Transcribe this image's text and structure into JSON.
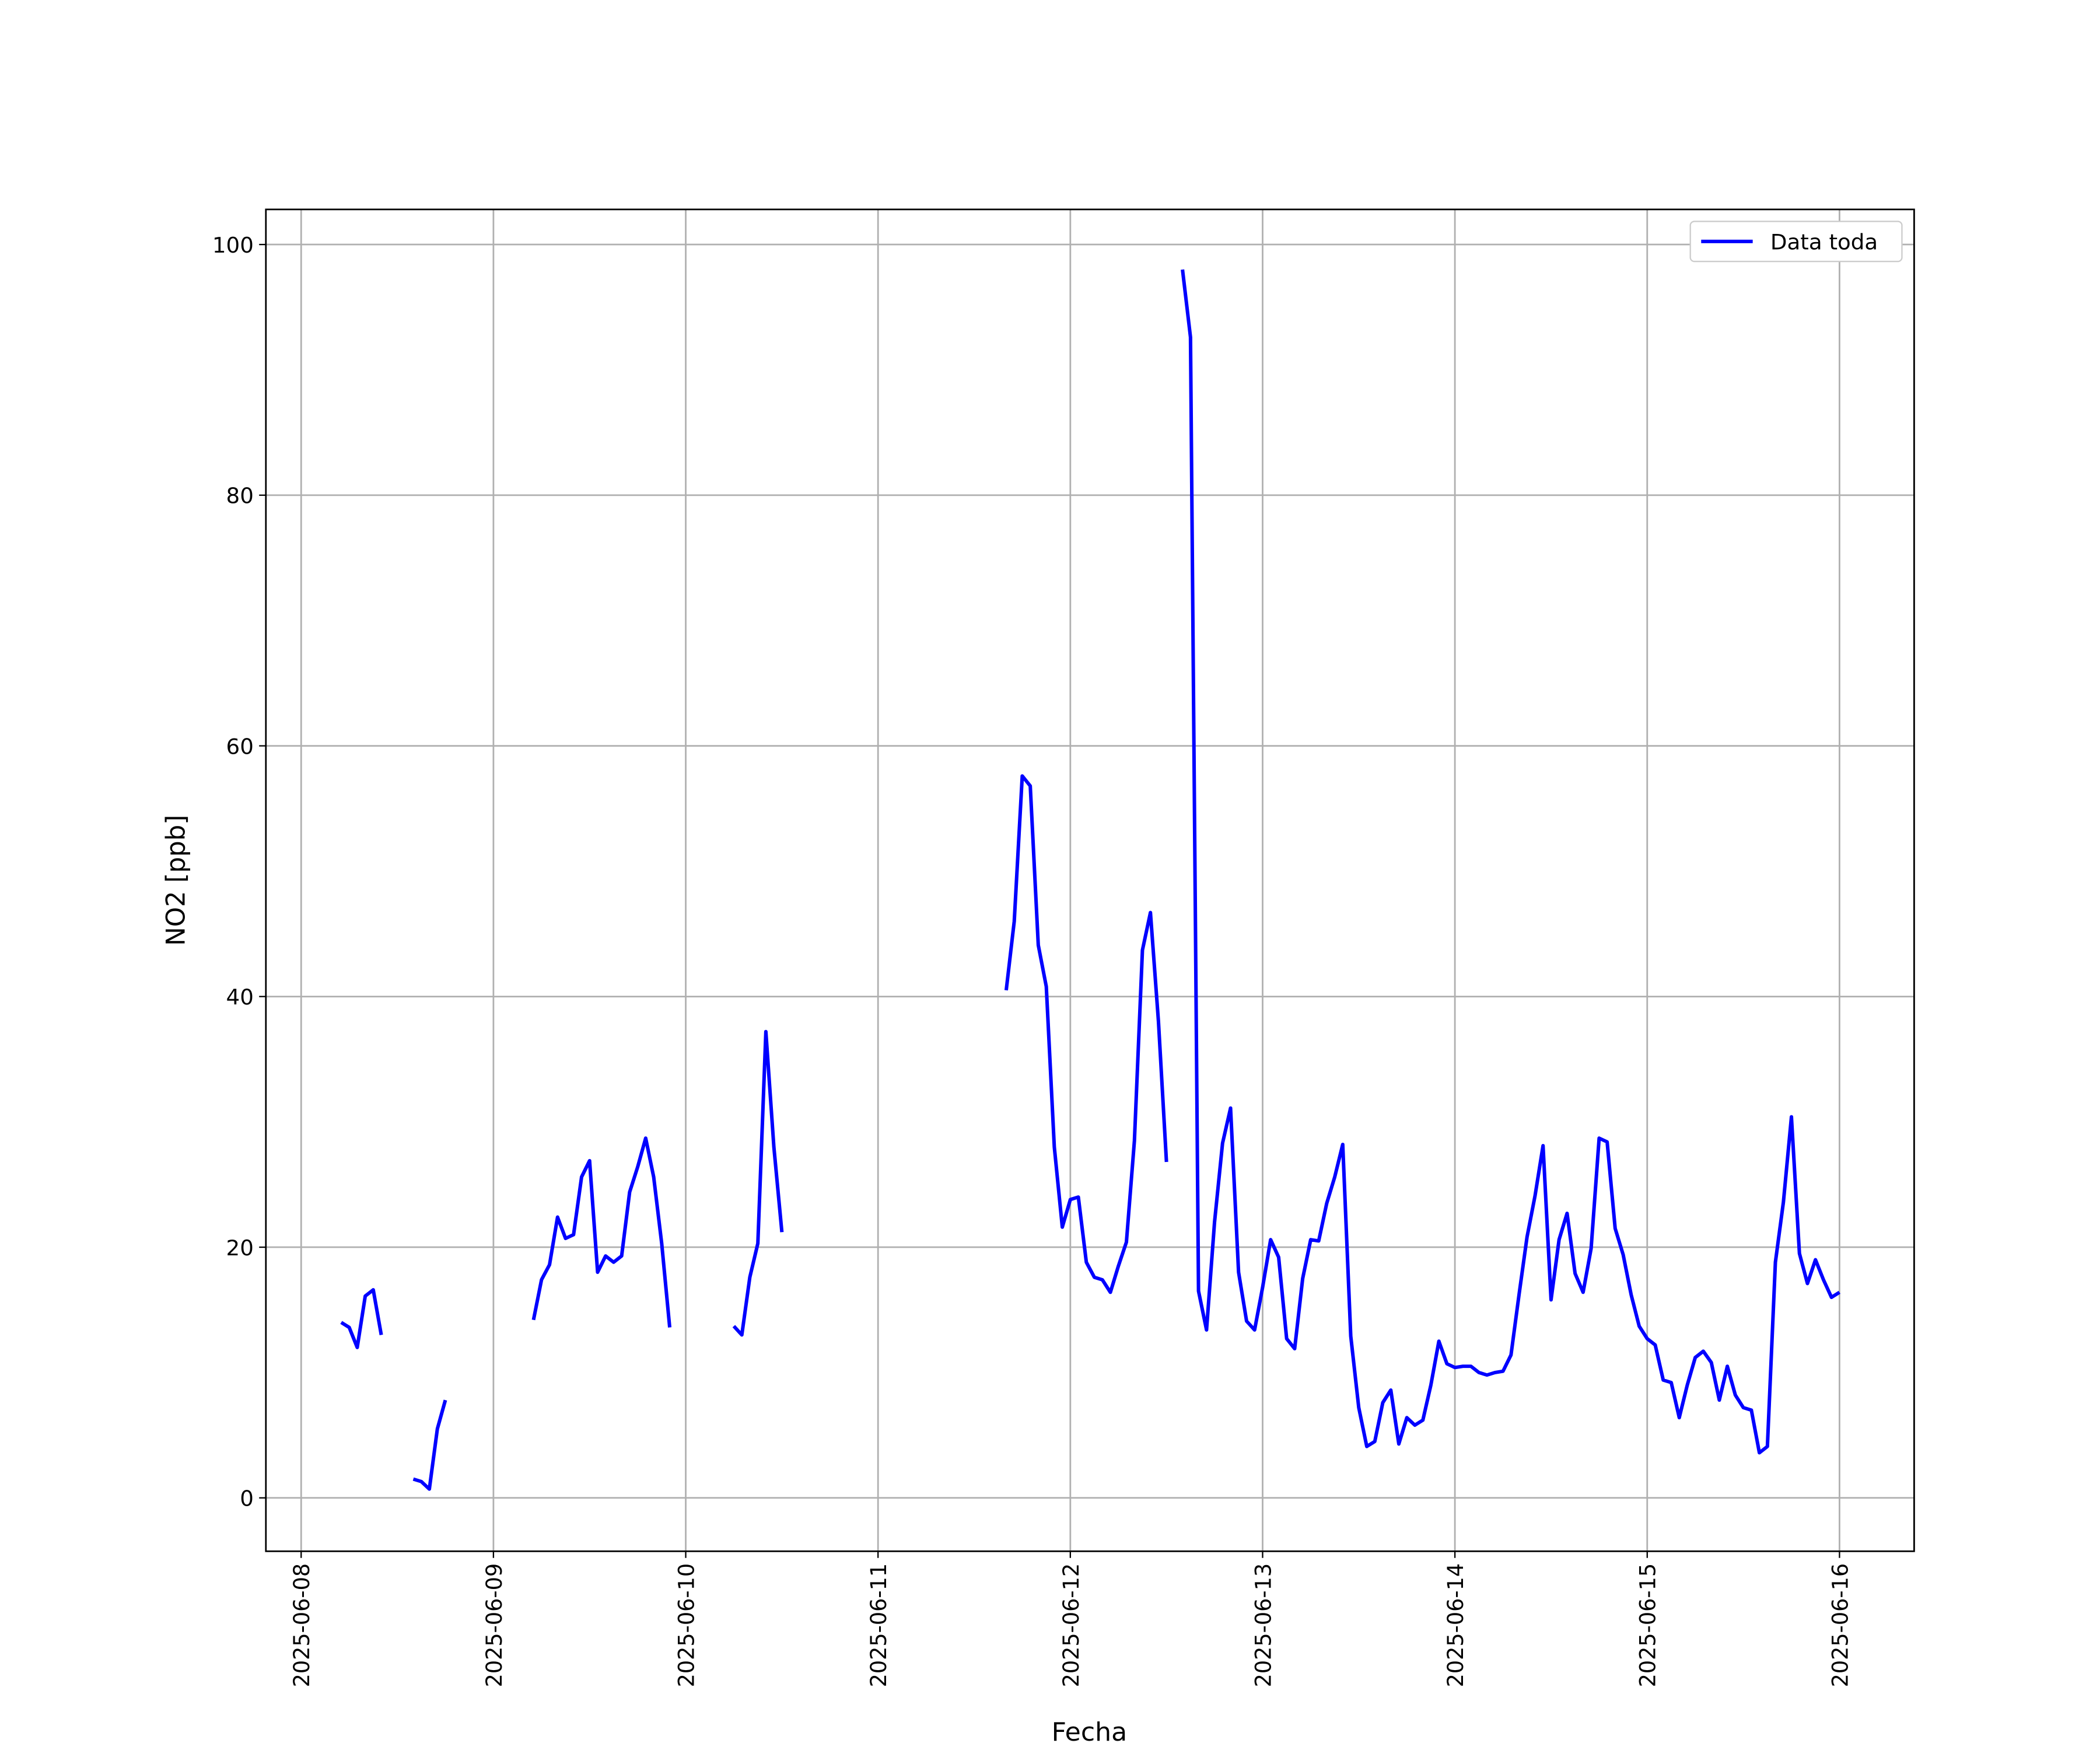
{
  "chart_data": {
    "type": "line",
    "xlabel": "Fecha",
    "ylabel": "NO2 [ppb]",
    "xlim": [
      "2025-06-07T19:36",
      "2025-06-16T09:19"
    ],
    "xticks": [
      "2025-06-08",
      "2025-06-09",
      "2025-06-10",
      "2025-06-11",
      "2025-06-12",
      "2025-06-13",
      "2025-06-14",
      "2025-06-15",
      "2025-06-16"
    ],
    "ylim": [
      -4.26,
      102.8
    ],
    "yticks": [
      0,
      20,
      40,
      60,
      80,
      100
    ],
    "grid": true,
    "legend": "upper right",
    "x": [
      "2025-06-08T05:00",
      "2025-06-08T06:00",
      "2025-06-08T07:00",
      "2025-06-08T08:00",
      "2025-06-08T09:00",
      "2025-06-08T10:00",
      "2025-06-08T11:00",
      "2025-06-08T14:00",
      "2025-06-08T15:00",
      "2025-06-08T16:00",
      "2025-06-08T17:00",
      "2025-06-08T18:00",
      "2025-06-08T19:00",
      "2025-06-09T05:00",
      "2025-06-09T06:00",
      "2025-06-09T07:00",
      "2025-06-09T08:00",
      "2025-06-09T09:00",
      "2025-06-09T10:00",
      "2025-06-09T11:00",
      "2025-06-09T12:00",
      "2025-06-09T13:00",
      "2025-06-09T14:00",
      "2025-06-09T15:00",
      "2025-06-09T16:00",
      "2025-06-09T17:00",
      "2025-06-09T18:00",
      "2025-06-09T19:00",
      "2025-06-09T20:00",
      "2025-06-09T21:00",
      "2025-06-09T22:00",
      "2025-06-09T23:00",
      "2025-06-10T06:00",
      "2025-06-10T07:00",
      "2025-06-10T08:00",
      "2025-06-10T09:00",
      "2025-06-10T10:00",
      "2025-06-10T11:00",
      "2025-06-10T12:00",
      "2025-06-10T13:00",
      "2025-06-11T16:00",
      "2025-06-11T17:00",
      "2025-06-11T18:00",
      "2025-06-11T19:00",
      "2025-06-11T20:00",
      "2025-06-11T21:00",
      "2025-06-11T22:00",
      "2025-06-11T23:00",
      "2025-06-12T00:00",
      "2025-06-12T01:00",
      "2025-06-12T02:00",
      "2025-06-12T03:00",
      "2025-06-12T04:00",
      "2025-06-12T05:00",
      "2025-06-12T06:00",
      "2025-06-12T07:00",
      "2025-06-12T08:00",
      "2025-06-12T09:00",
      "2025-06-12T10:00",
      "2025-06-12T11:00",
      "2025-06-12T12:00",
      "2025-06-12T13:00",
      "2025-06-12T14:00",
      "2025-06-12T15:00",
      "2025-06-12T16:00",
      "2025-06-12T17:00",
      "2025-06-12T18:00",
      "2025-06-12T19:00",
      "2025-06-12T20:00",
      "2025-06-12T21:00",
      "2025-06-12T22:00",
      "2025-06-12T23:00",
      "2025-06-13T00:00",
      "2025-06-13T01:00",
      "2025-06-13T02:00",
      "2025-06-13T03:00",
      "2025-06-13T04:00",
      "2025-06-13T05:00",
      "2025-06-13T06:00",
      "2025-06-13T07:00",
      "2025-06-13T08:00",
      "2025-06-13T09:00",
      "2025-06-13T10:00",
      "2025-06-13T11:00",
      "2025-06-13T12:00",
      "2025-06-13T13:00",
      "2025-06-13T14:00",
      "2025-06-13T15:00",
      "2025-06-13T16:00",
      "2025-06-13T17:00",
      "2025-06-13T18:00",
      "2025-06-13T19:00",
      "2025-06-13T20:00",
      "2025-06-13T21:00",
      "2025-06-13T22:00",
      "2025-06-13T23:00",
      "2025-06-14T00:00",
      "2025-06-14T01:00",
      "2025-06-14T02:00",
      "2025-06-14T03:00",
      "2025-06-14T04:00",
      "2025-06-14T05:00",
      "2025-06-14T06:00",
      "2025-06-14T07:00",
      "2025-06-14T08:00",
      "2025-06-14T09:00",
      "2025-06-14T10:00",
      "2025-06-14T11:00",
      "2025-06-14T12:00",
      "2025-06-14T13:00",
      "2025-06-14T14:00",
      "2025-06-14T15:00",
      "2025-06-14T16:00",
      "2025-06-14T17:00",
      "2025-06-14T18:00",
      "2025-06-14T19:00",
      "2025-06-14T20:00",
      "2025-06-14T21:00",
      "2025-06-14T22:00",
      "2025-06-14T23:00",
      "2025-06-15T00:00",
      "2025-06-15T01:00",
      "2025-06-15T02:00",
      "2025-06-15T03:00",
      "2025-06-15T04:00",
      "2025-06-15T05:00",
      "2025-06-15T06:00",
      "2025-06-15T07:00",
      "2025-06-15T08:00",
      "2025-06-15T09:00",
      "2025-06-15T10:00",
      "2025-06-15T11:00",
      "2025-06-15T12:00",
      "2025-06-15T13:00",
      "2025-06-15T14:00",
      "2025-06-15T15:00",
      "2025-06-15T16:00",
      "2025-06-15T17:00",
      "2025-06-15T18:00",
      "2025-06-15T19:00",
      "2025-06-15T20:00",
      "2025-06-15T21:00",
      "2025-06-15T22:00",
      "2025-06-15T23:00",
      "2025-06-16T00:00"
    ],
    "series": [
      {
        "name": "Data toda",
        "color": "#0000ff",
        "values": [
          14.0,
          13.6,
          12.0,
          16.1,
          16.6,
          13.0,
          null,
          1.5,
          1.3,
          0.7,
          5.5,
          7.8,
          null,
          14.2,
          17.4,
          18.6,
          22.4,
          20.7,
          21.0,
          25.6,
          26.9,
          18.0,
          19.3,
          18.8,
          19.3,
          24.4,
          26.4,
          28.7,
          25.6,
          20.3,
          13.6,
          null,
          13.7,
          13.0,
          17.6,
          20.3,
          37.2,
          28.0,
          21.2,
          null,
          40.5,
          46.0,
          57.6,
          56.8,
          44.1,
          40.8,
          28.0,
          21.6,
          23.8,
          24.0,
          18.8,
          17.6,
          17.4,
          16.4,
          18.5,
          20.4,
          28.5,
          43.7,
          46.7,
          38.0,
          26.8,
          null,
          98.0,
          92.6,
          16.5,
          13.4,
          22.0,
          28.3,
          31.1,
          18.0,
          14.1,
          13.4,
          16.8,
          20.6,
          19.2,
          12.7,
          11.9,
          17.5,
          20.6,
          20.5,
          23.5,
          25.6,
          28.2,
          12.9,
          7.2,
          4.1,
          4.5,
          7.6,
          8.6,
          4.3,
          6.4,
          5.8,
          6.2,
          9.0,
          12.5,
          10.7,
          10.4,
          10.5,
          10.5,
          10.0,
          9.8,
          10.0,
          10.1,
          11.4,
          16.2,
          20.8,
          24.1,
          28.1,
          15.8,
          20.6,
          22.7,
          17.9,
          16.4,
          19.9,
          28.7,
          28.4,
          21.5,
          19.4,
          16.2,
          13.7,
          12.7,
          12.2,
          9.4,
          9.2,
          6.4,
          9.0,
          11.2,
          11.7,
          10.8,
          7.8,
          10.5,
          8.2,
          7.2,
          7.0,
          3.6,
          4.1,
          18.8,
          23.6,
          30.4,
          19.5,
          17.1,
          19.0,
          17.4,
          16.0,
          16.4
        ]
      }
    ]
  }
}
